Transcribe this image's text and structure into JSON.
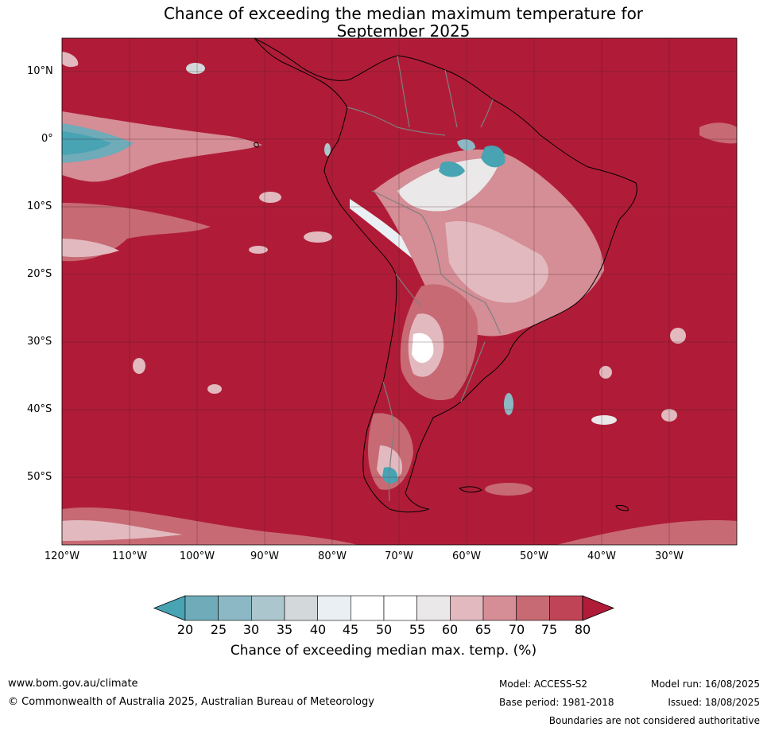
{
  "title": {
    "line1": "Chance of exceeding the median maximum temperature for",
    "line2": "September 2025"
  },
  "map": {
    "lat_labels": [
      "10°N",
      "0°",
      "10°S",
      "20°S",
      "30°S",
      "40°S",
      "50°S"
    ],
    "lon_labels": [
      "120°W",
      "110°W",
      "100°W",
      "90°W",
      "80°W",
      "70°W",
      "60°W",
      "50°W",
      "40°W",
      "30°W"
    ],
    "background_color": "#b01c38",
    "land_outline_color": "#000000",
    "border_color": "#7f7f7f"
  },
  "colorbar": {
    "label": "Chance of exceeding median max. temp. (%)",
    "ticks": [
      "20",
      "25",
      "30",
      "35",
      "40",
      "45",
      "50",
      "55",
      "60",
      "65",
      "70",
      "75",
      "80"
    ],
    "colors": [
      "#48a3b3",
      "#6fabb8",
      "#8bb8c4",
      "#acc6cd",
      "#d3d9db",
      "#e9eff2",
      "#ffffff",
      "#ffffff",
      "#eae8e9",
      "#e2b9be",
      "#d58d96",
      "#c76a74",
      "#bf4556",
      "#b01c38"
    ]
  },
  "footer": {
    "url": "www.bom.gov.au/climate",
    "copyright": "© Commonwealth of Australia 2025, Australian Bureau of Meteorology",
    "model": "Model: ACCESS-S2",
    "base_period": "Base period: 1981-2018",
    "model_run": "Model run: 16/08/2025",
    "issued": "Issued: 18/08/2025",
    "disclaimer": "Boundaries are not considered authoritative"
  }
}
